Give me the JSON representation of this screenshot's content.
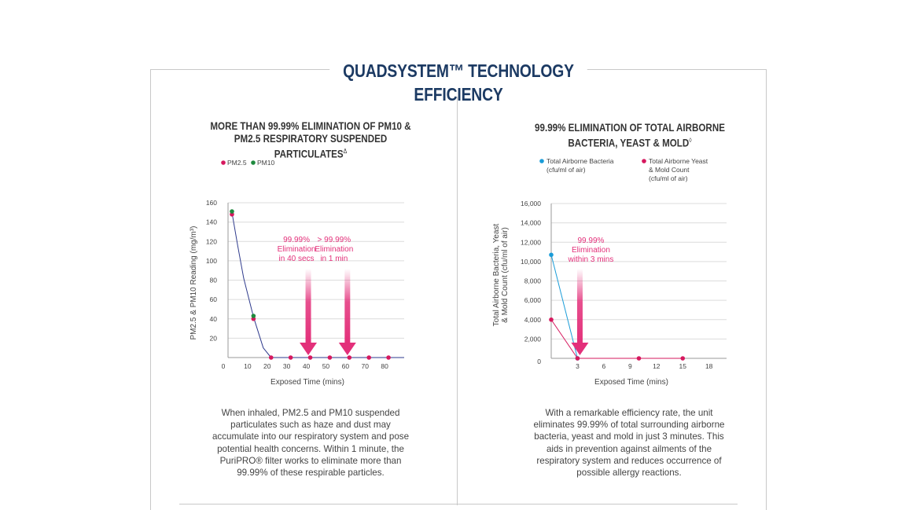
{
  "page": {
    "title": "QUADSYSTEM™ TECHNOLOGY EFFICIENCY",
    "accent_color": "#e3307a",
    "title_color": "#1c3a63"
  },
  "left": {
    "title_line1": "MORE THAN 99.99% ELIMINATION OF PM10 &",
    "title_line2": "PM2.5 RESPIRATORY SUSPENDED PARTICULATES",
    "title_mark": "Δ",
    "description": [
      "When inhaled, PM2.5 and PM10 suspended",
      "particulates such as haze and dust may",
      "accumulate into our respiratory system and pose",
      "potential health concerns. Within 1 minute, the",
      "PuriPRO® filter works to eliminate more than",
      "99.99% of these respirable particles."
    ]
  },
  "right": {
    "title_line1": "99.99% ELIMINATION OF TOTAL AIRBORNE",
    "title_line2": "BACTERIA, YEAST & MOLD",
    "title_mark": "◊",
    "description": [
      "With a remarkable efficiency rate, the unit",
      "eliminates 99.99% of total surrounding airborne",
      "bacteria, yeast and mold in just 3 minutes. This",
      "aids in prevention against ailments of the",
      "respiratory system and reduces occurrence of",
      "possible allergy reactions."
    ]
  },
  "chart_data": [
    {
      "type": "scatter",
      "title": "MORE THAN 99.99% ELIMINATION OF PM10 & PM2.5 RESPIRATORY SUSPENDED PARTICULATES",
      "xlabel": "Exposed Time (mins)",
      "ylabel": "PM2.5 & PM10 Reading (mg/m³)",
      "xlim": [
        0,
        90
      ],
      "ylim": [
        0,
        160
      ],
      "xticks": [
        0,
        10,
        20,
        30,
        40,
        50,
        60,
        70,
        80
      ],
      "xtick_labels": [
        "0",
        "10",
        "20",
        "30",
        "40",
        "50",
        "60",
        "70",
        "80"
      ],
      "yticks": [
        20,
        40,
        60,
        80,
        100,
        120,
        140,
        160
      ],
      "ytick_labels": [
        "20",
        "40",
        "60",
        "80",
        "100",
        "120",
        "140",
        "160"
      ],
      "legend": [
        {
          "name": "PM2.5",
          "color": "#d6185e"
        },
        {
          "name": "PM10",
          "color": "#1f8a3e"
        }
      ],
      "series": [
        {
          "name": "PM2.5",
          "color": "#d6185e",
          "x": [
            2,
            13,
            22,
            32,
            42,
            52,
            62,
            72,
            82
          ],
          "y": [
            148,
            40,
            0,
            0,
            0,
            0,
            0,
            0,
            0
          ]
        },
        {
          "name": "PM10",
          "color": "#1f8a3e",
          "x": [
            2,
            13
          ],
          "y": [
            151,
            43
          ]
        }
      ],
      "fit_line": {
        "color": "#2e3a8c",
        "x": [
          2,
          5,
          8,
          13,
          18,
          22,
          90
        ],
        "y": [
          150,
          115,
          82,
          42,
          10,
          0,
          0
        ]
      },
      "annotations": [
        {
          "x": 41,
          "lines": [
            "99.99%",
            "Elimination",
            "in 40 secs"
          ]
        },
        {
          "x": 61,
          "lines": [
            "> 99.99%",
            "Elimination",
            "in 1 min"
          ]
        }
      ]
    },
    {
      "type": "line",
      "title": "99.99% ELIMINATION OF TOTAL AIRBORNE BACTERIA, YEAST & MOLD",
      "xlabel": "Exposed Time (mins)",
      "ylabel_lines": [
        "Total Airborne Bacteria, Yeast",
        "& Mold Count (cfu/ml of air)"
      ],
      "xlim": [
        0,
        20
      ],
      "ylim": [
        0,
        16000
      ],
      "xticks": [
        3,
        6,
        9,
        12,
        15,
        18
      ],
      "xtick_labels": [
        "3",
        "6",
        "9",
        "12",
        "15",
        "18"
      ],
      "yticks": [
        0,
        2000,
        4000,
        6000,
        8000,
        10000,
        12000,
        14000,
        16000
      ],
      "ytick_labels": [
        "0",
        "2,000",
        "4,000",
        "6,000",
        "8,000",
        "10,000",
        "12,000",
        "14,000",
        "16,000"
      ],
      "legend": [
        {
          "color": "#1a9cd8",
          "lines": [
            "Total Airborne Bacteria",
            "(cfu/ml of air)"
          ]
        },
        {
          "color": "#d6185e",
          "lines": [
            "Total Airborne Yeast",
            "& Mold Count",
            "(cfu/ml of air)"
          ]
        }
      ],
      "series": [
        {
          "name": "Total Airborne Bacteria",
          "color": "#1a9cd8",
          "x": [
            0,
            3
          ],
          "y": [
            10700,
            0
          ]
        },
        {
          "name": "Total Airborne Yeast & Mold Count",
          "color": "#d6185e",
          "x": [
            0,
            3,
            10,
            15
          ],
          "y": [
            4000,
            0,
            0,
            0
          ]
        }
      ],
      "annotations": [
        {
          "x": 3,
          "lines": [
            "99.99%",
            "Elimination",
            "within 3 mins"
          ]
        }
      ]
    }
  ]
}
